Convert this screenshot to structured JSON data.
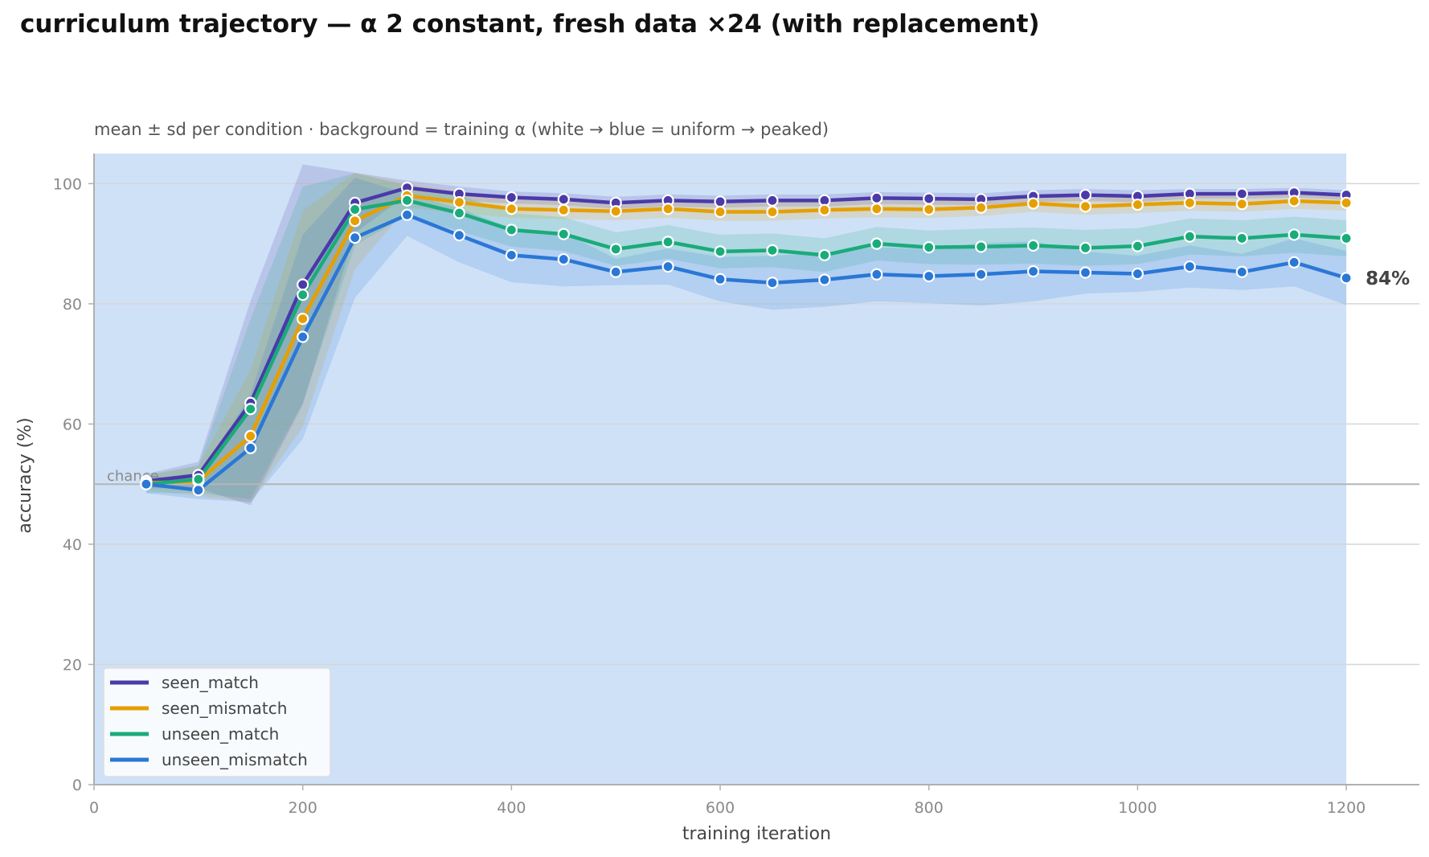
{
  "chart_data": {
    "type": "line",
    "title": "curriculum trajectory — α 2 constant, fresh data ×24 (with replacement)",
    "subtitle": "mean ± sd per condition · background = training α (white → blue = uniform → peaked)",
    "xlabel": "training iteration",
    "ylabel": "accuracy (%)",
    "xlim": [
      0,
      1270
    ],
    "ylim": [
      0,
      105
    ],
    "xticks": [
      0,
      200,
      400,
      600,
      800,
      1000,
      1200
    ],
    "yticks": [
      0,
      20,
      40,
      60,
      80,
      100
    ],
    "grid": "horizontal",
    "legend_position": "lower-left",
    "background_band": {
      "x_range": [
        0,
        1200
      ],
      "color": "#cfe1f7"
    },
    "chance": {
      "label": "chance",
      "value": 50
    },
    "end_label": {
      "text": "84%",
      "series": "unseen_mismatch"
    },
    "x": [
      50,
      100,
      150,
      200,
      250,
      300,
      350,
      400,
      450,
      500,
      550,
      600,
      650,
      700,
      750,
      800,
      850,
      900,
      950,
      1000,
      1050,
      1100,
      1150,
      1200
    ],
    "series": [
      {
        "name": "seen_match",
        "color": "#4a3aa8",
        "values": [
          50.5,
          51.5,
          63.5,
          83.2,
          96.8,
          99.3,
          98.3,
          97.7,
          97.4,
          96.8,
          97.2,
          97.0,
          97.2,
          97.2,
          97.6,
          97.5,
          97.4,
          97.9,
          98.1,
          97.9,
          98.3,
          98.3,
          98.5,
          98.1
        ],
        "sd": [
          1.2,
          2.2,
          17,
          20,
          5,
          1.2,
          1.2,
          1.0,
          1.0,
          1.0,
          1.0,
          1.0,
          1.0,
          1.0,
          1.0,
          1.0,
          1.0,
          1.0,
          1.0,
          1.0,
          0.8,
          0.8,
          0.8,
          0.8
        ]
      },
      {
        "name": "seen_mismatch",
        "color": "#e69f00",
        "values": [
          50.2,
          50.5,
          58.0,
          77.5,
          93.8,
          98.0,
          96.9,
          95.8,
          95.6,
          95.4,
          95.8,
          95.3,
          95.3,
          95.6,
          95.8,
          95.7,
          96.0,
          96.7,
          96.2,
          96.5,
          96.8,
          96.6,
          97.1,
          96.8
        ],
        "sd": [
          1.2,
          2.5,
          11,
          18,
          8,
          2,
          1.8,
          1.5,
          1.5,
          1.5,
          1.5,
          1.5,
          1.5,
          1.4,
          1.4,
          1.4,
          1.4,
          1.4,
          1.4,
          1.4,
          1.3,
          1.3,
          1.3,
          1.3
        ]
      },
      {
        "name": "unseen_match",
        "color": "#1aab7a",
        "values": [
          50.0,
          50.8,
          62.5,
          81.5,
          95.7,
          97.2,
          95.1,
          92.3,
          91.6,
          89.1,
          90.3,
          88.7,
          88.9,
          88.1,
          90.0,
          89.4,
          89.5,
          89.7,
          89.3,
          89.6,
          91.2,
          90.9,
          91.5,
          90.9
        ],
        "sd": [
          1.5,
          2.3,
          15,
          18,
          6,
          2.5,
          3,
          2.8,
          2.8,
          2.8,
          2.8,
          2.8,
          2.8,
          2.8,
          2.8,
          2.8,
          3,
          3,
          3,
          3,
          3,
          3,
          3,
          3
        ]
      },
      {
        "name": "unseen_mismatch",
        "color": "#2a77d6",
        "values": [
          50.0,
          49.0,
          56.0,
          74.5,
          91.0,
          94.8,
          91.4,
          88.1,
          87.4,
          85.3,
          86.2,
          84.1,
          83.5,
          84.0,
          84.9,
          84.6,
          84.9,
          85.4,
          85.2,
          85.0,
          86.2,
          85.3,
          86.9,
          84.3
        ],
        "sd": [
          1.5,
          1.5,
          9,
          17,
          10,
          3.5,
          4.5,
          4.5,
          4.5,
          2.2,
          3,
          3.7,
          4.5,
          4.5,
          4.5,
          4.5,
          5.2,
          5,
          3.5,
          3,
          3.5,
          3,
          4,
          4.5
        ]
      }
    ]
  }
}
